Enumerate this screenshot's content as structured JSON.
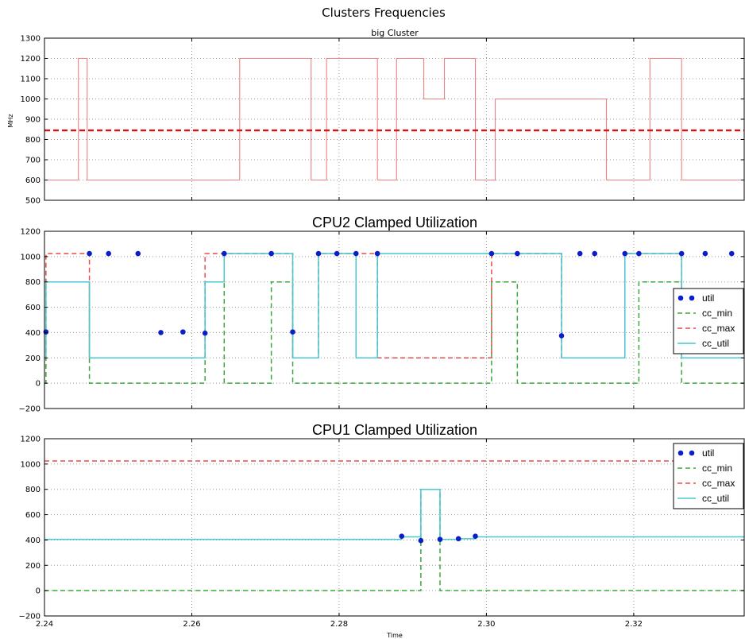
{
  "figure": {
    "title": "Clusters Frequencies"
  },
  "colors": {
    "util": "#0a1fc8",
    "cc_min": "#3aa83a",
    "cc_max": "#e84c4c",
    "cc_util": "#47c8d2",
    "freq": "#f08080",
    "avg": "#dd1111",
    "grid": "#9a9a9a"
  },
  "chart_data": [
    {
      "id": "freq",
      "type": "line",
      "title": "big Cluster",
      "ylabel": "MHz",
      "xlim": [
        2.24,
        2.335
      ],
      "ylim": [
        500,
        1300
      ],
      "yticks": [
        500,
        600,
        700,
        800,
        900,
        1000,
        1100,
        1200,
        1300
      ],
      "series": [
        {
          "key": "freq",
          "style": "step",
          "x": [
            2.24,
            2.2446,
            2.2458,
            2.2635,
            2.2665,
            2.2762,
            2.2783,
            2.2852,
            2.2878,
            2.2915,
            2.2943,
            2.2985,
            2.3012,
            2.3028,
            2.3062,
            2.3163,
            2.3222,
            2.3265,
            2.335
          ],
          "y": [
            600,
            1200,
            600,
            600,
            1200,
            600,
            1200,
            600,
            1200,
            1000,
            1200,
            600,
            1000,
            1000,
            1000,
            600,
            1200,
            600,
            600
          ]
        },
        {
          "key": "avg",
          "style": "hline",
          "y": 845
        }
      ]
    },
    {
      "id": "cpu2",
      "type": "line",
      "title": "CPU2 Clamped Utilization",
      "xlim": [
        2.24,
        2.335
      ],
      "ylim": [
        -200,
        1200
      ],
      "yticks": [
        -200,
        0,
        200,
        400,
        600,
        800,
        1000,
        1200
      ],
      "legend": [
        "util",
        "cc_min",
        "cc_max",
        "cc_util"
      ],
      "legend_loc": "center right",
      "series": [
        {
          "name": "cc_min",
          "style": "step",
          "x": [
            2.24,
            2.2402,
            2.2461,
            2.2618,
            2.2644,
            2.2708,
            2.2737,
            2.3007,
            2.3042,
            2.3207,
            2.3265,
            2.335
          ],
          "y": [
            0,
            800,
            0,
            800,
            0,
            800,
            0,
            800,
            0,
            800,
            0,
            0
          ]
        },
        {
          "name": "cc_max",
          "style": "step",
          "x": [
            2.24,
            2.2402,
            2.2461,
            2.2618,
            2.2644,
            2.2708,
            2.2737,
            2.2772,
            2.2823,
            2.2852,
            2.3007,
            2.3042,
            2.3102,
            2.3188,
            2.3265,
            2.335
          ],
          "y": [
            800,
            1024,
            200,
            1024,
            1024,
            1024,
            200,
            1024,
            1024,
            200,
            1024,
            1024,
            200,
            1024,
            200,
            200
          ]
        },
        {
          "name": "cc_util",
          "style": "step",
          "x": [
            2.24,
            2.2402,
            2.2461,
            2.2618,
            2.2644,
            2.2708,
            2.2737,
            2.2772,
            2.2823,
            2.2852,
            2.3007,
            2.3042,
            2.3102,
            2.3188,
            2.3265,
            2.335
          ],
          "y": [
            200,
            800,
            200,
            800,
            1024,
            1024,
            200,
            1024,
            200,
            1024,
            1024,
            1024,
            200,
            1024,
            200,
            200
          ]
        },
        {
          "name": "util",
          "style": "scatter",
          "x": [
            2.2402,
            2.2461,
            2.2487,
            2.2527,
            2.2558,
            2.2588,
            2.2618,
            2.2644,
            2.2708,
            2.2737,
            2.2772,
            2.2797,
            2.2823,
            2.2852,
            2.3007,
            2.3042,
            2.3102,
            2.3127,
            2.3147,
            2.3188,
            2.3207,
            2.3265,
            2.3297,
            2.3333
          ],
          "y": [
            405,
            1024,
            1024,
            1024,
            400,
            405,
            395,
            1024,
            1024,
            405,
            1024,
            1024,
            1024,
            1024,
            1024,
            1024,
            375,
            1024,
            1024,
            1024,
            1024,
            1024,
            1024,
            1024
          ]
        }
      ]
    },
    {
      "id": "cpu1",
      "type": "line",
      "title": "CPU1 Clamped Utilization",
      "xlabel": "Time",
      "xlim": [
        2.24,
        2.335
      ],
      "ylim": [
        -200,
        1200
      ],
      "yticks": [
        -200,
        0,
        200,
        400,
        600,
        800,
        1000,
        1200
      ],
      "xticks": [
        2.24,
        2.26,
        2.28,
        2.3,
        2.32
      ],
      "xticklabels": [
        "2.24",
        "2.26",
        "2.28",
        "2.30",
        "2.32"
      ],
      "legend": [
        "util",
        "cc_min",
        "cc_max",
        "cc_util"
      ],
      "legend_loc": "upper right",
      "series": [
        {
          "name": "cc_min",
          "style": "step",
          "x": [
            2.24,
            2.2911,
            2.2937,
            2.335
          ],
          "y": [
            0,
            800,
            0,
            0
          ]
        },
        {
          "name": "cc_max",
          "style": "hline",
          "y": 1024
        },
        {
          "name": "cc_util",
          "style": "step",
          "x": [
            2.24,
            2.2885,
            2.2911,
            2.2937,
            2.2962,
            2.2985,
            2.335
          ],
          "y": [
            405,
            425,
            800,
            405,
            410,
            425,
            425
          ]
        },
        {
          "name": "util",
          "style": "scatter",
          "x": [
            2.2885,
            2.2911,
            2.2937,
            2.2962,
            2.2985
          ],
          "y": [
            430,
            395,
            405,
            410,
            430
          ]
        }
      ]
    }
  ]
}
